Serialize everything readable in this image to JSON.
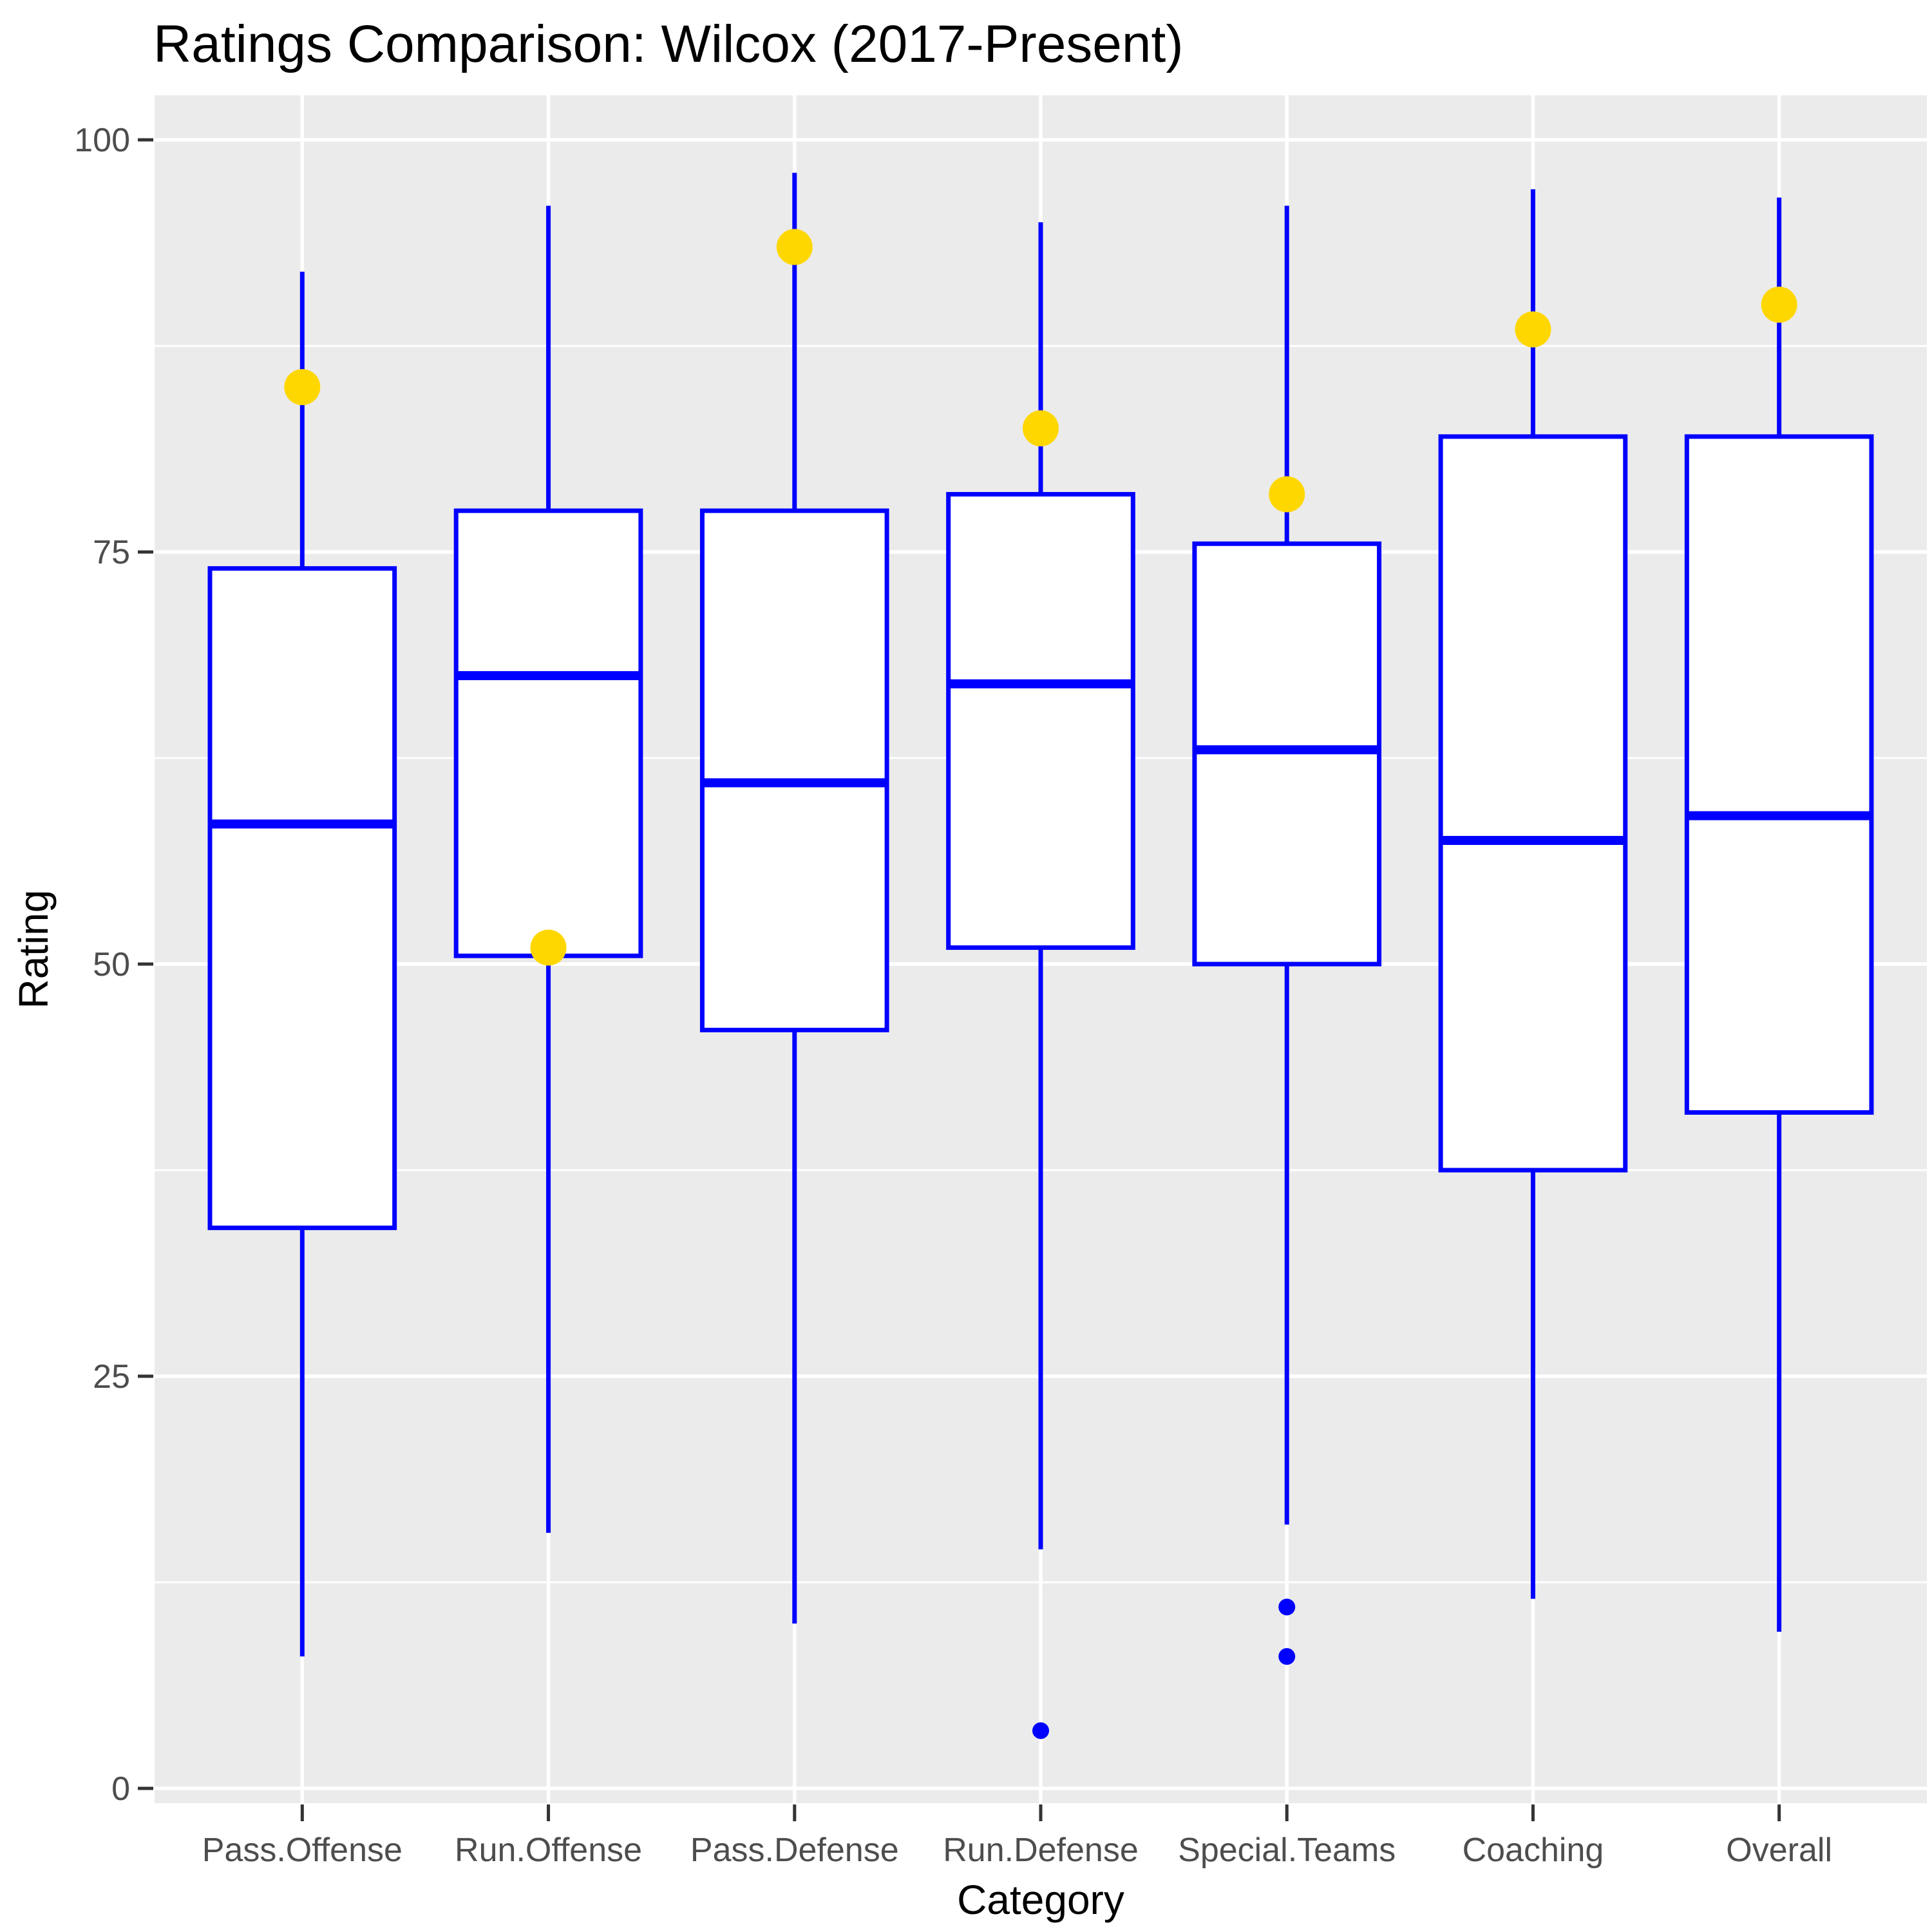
{
  "title": "Ratings Comparison: Wilcox (2017-Present)",
  "colors": {
    "box_stroke": "#0000FF",
    "box_fill": "#FFFFFF",
    "highlight_dot": "#FFD700",
    "outlier_dot": "#0000FF",
    "panel_background": "#EBEBEB",
    "gridline": "#FFFFFF",
    "tick_mark": "#333333",
    "tick_text": "#4D4D4D",
    "title_text": "#000000"
  },
  "chart_data": {
    "type": "boxplot",
    "title": "Ratings Comparison: Wilcox (2017-Present)",
    "xlabel": "Category",
    "ylabel": "Rating",
    "ylim": [
      0,
      100
    ],
    "panel_ylim": [
      -0.9,
      102.7
    ],
    "y_ticks": [
      0,
      25,
      50,
      75,
      100
    ],
    "y_minor_ticks": [
      12.5,
      37.5,
      62.5,
      87.5
    ],
    "grid": true,
    "legend": "none",
    "categories": [
      "Pass.Offense",
      "Run.Offense",
      "Pass.Defense",
      "Run.Defense",
      "Special.Teams",
      "Coaching",
      "Overall"
    ],
    "series": [
      {
        "category": "Pass.Offense",
        "whisker_low": 8,
        "q1": 34,
        "median": 58.5,
        "q3": 74,
        "whisker_high": 92,
        "highlight": 85,
        "outliers": []
      },
      {
        "category": "Run.Offense",
        "whisker_low": 15.5,
        "q1": 50.5,
        "median": 67.5,
        "q3": 77.5,
        "whisker_high": 96,
        "highlight": 51,
        "outliers": []
      },
      {
        "category": "Pass.Defense",
        "whisker_low": 10,
        "q1": 46,
        "median": 61,
        "q3": 77.5,
        "whisker_high": 98,
        "highlight": 93.5,
        "outliers": []
      },
      {
        "category": "Run.Defense",
        "whisker_low": 14.5,
        "q1": 51,
        "median": 67,
        "q3": 78.5,
        "whisker_high": 95,
        "highlight": 82.5,
        "outliers": [
          3.5
        ]
      },
      {
        "category": "Special.Teams",
        "whisker_low": 16,
        "q1": 50,
        "median": 63,
        "q3": 75.5,
        "whisker_high": 96,
        "highlight": 78.5,
        "outliers": [
          11,
          8
        ]
      },
      {
        "category": "Coaching",
        "whisker_low": 11.5,
        "q1": 37.5,
        "median": 57.5,
        "q3": 82,
        "whisker_high": 97,
        "highlight": 88.5,
        "outliers": []
      },
      {
        "category": "Overall",
        "whisker_low": 9.5,
        "q1": 41,
        "median": 59,
        "q3": 82,
        "whisker_high": 96.5,
        "highlight": 90,
        "outliers": []
      }
    ]
  }
}
